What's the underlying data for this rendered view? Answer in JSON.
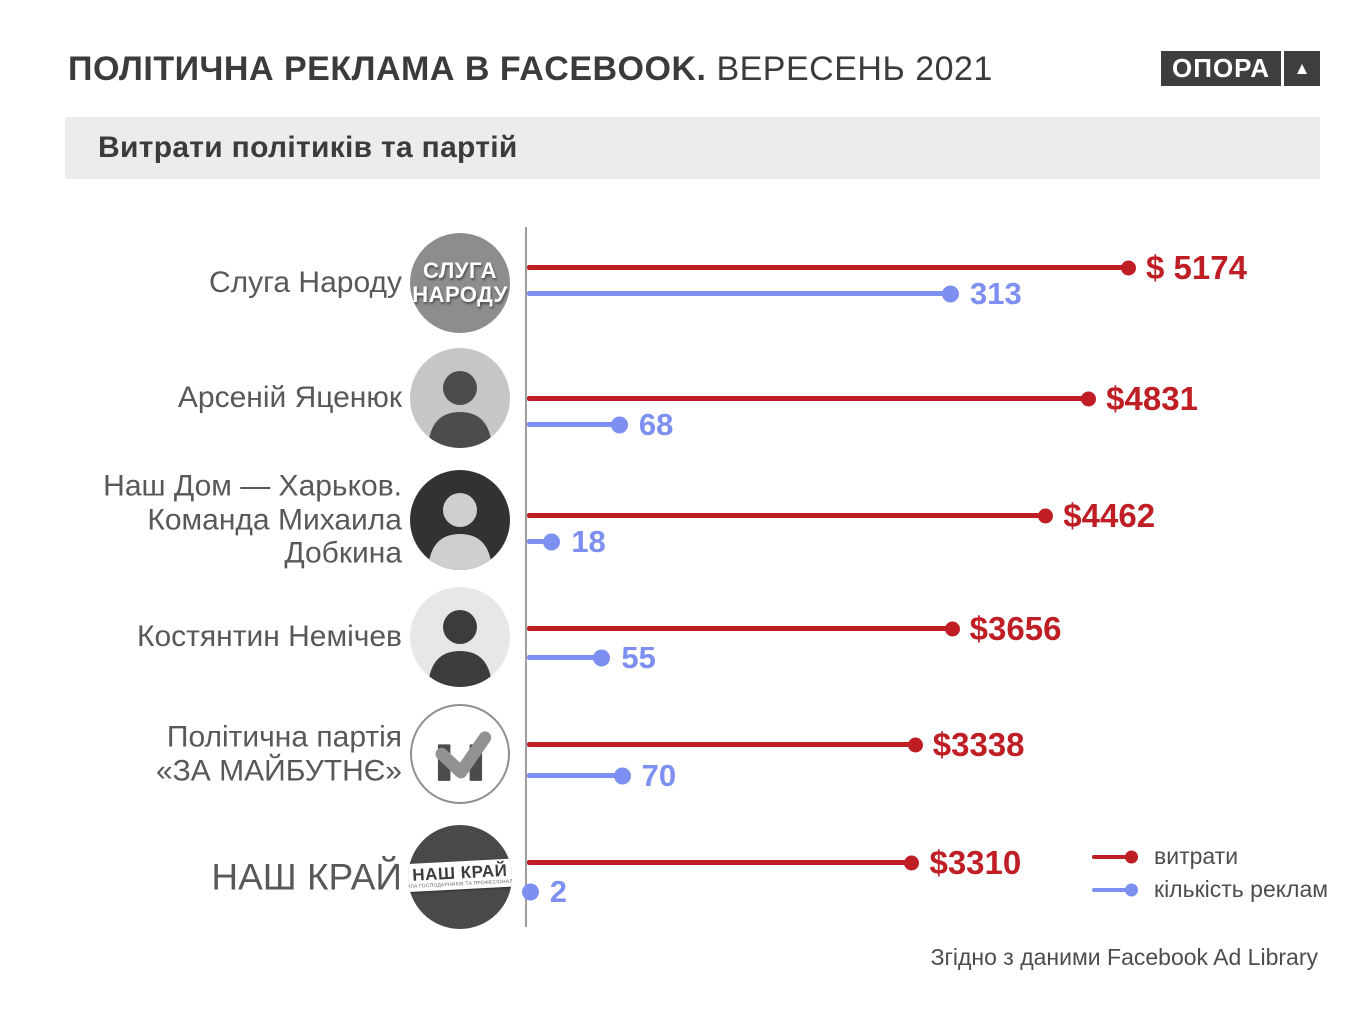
{
  "colors": {
    "spend_red": "#be1e24",
    "ads_blue": "#7d8ff0",
    "heading_dark": "#3b3b3d",
    "label_gray": "#58585a",
    "axis_gray": "#9d9d9d",
    "section_bar_bg": "#ececec",
    "logo_bg": "#3e3e40"
  },
  "header": {
    "title_bold": "ПОЛІТИЧНА РЕКЛАМА В FACEBOOK.",
    "title_period": "ВЕРЕСЕНЬ 2021",
    "logo_text": "ОПОРА",
    "logo_triangle": "▲"
  },
  "section": {
    "heading": "Витрати політиків та партій"
  },
  "chart_data": {
    "type": "lollipop-bar-horizontal",
    "title": "Витрати політиків та партій",
    "categories": [
      "Слуга Народу",
      "Арсеній Яценюк",
      "Наш Дом — Харьков. Команда Михаила Добкина",
      "Костянтин Немічев",
      "Політична партія «ЗА МАЙБУТНЄ»",
      "НАШ КРАЙ"
    ],
    "series": [
      {
        "name": "витрати",
        "color": "#be1e24",
        "values": [
          5174,
          4831,
          4462,
          3656,
          3338,
          3310
        ],
        "labels": [
          "$ 5174",
          "$4831",
          "$4462",
          "$3656",
          "$3338",
          "$3310"
        ]
      },
      {
        "name": "кількість реклам",
        "color": "#7d8ff0",
        "values": [
          313,
          68,
          18,
          55,
          70,
          2
        ],
        "labels": [
          "313",
          "68",
          "18",
          "55",
          "70",
          "2"
        ]
      }
    ],
    "legend_position": "bottom-right",
    "value_axis_hidden": true,
    "grid": false
  },
  "rows": [
    {
      "label_lines": [
        "Слуга Народу"
      ],
      "avatar": {
        "kind": "text-badge",
        "lines": [
          "СЛУГА",
          "НАРОДУ"
        ]
      }
    },
    {
      "label_lines": [
        "Арсеній Яценюк"
      ],
      "avatar": {
        "kind": "photo"
      }
    },
    {
      "label_lines": [
        "Наш Дом — Харьков.",
        "Команда Михаила",
        "Добкина"
      ],
      "avatar": {
        "kind": "photo"
      }
    },
    {
      "label_lines": [
        "Костянтин Немічев"
      ],
      "avatar": {
        "kind": "photo"
      }
    },
    {
      "label_lines": [
        "Політична партія",
        "«ЗА МАЙБУТНЄ»"
      ],
      "avatar": {
        "kind": "logo-m"
      }
    },
    {
      "label_lines": [
        "НАШ КРАЙ"
      ],
      "avatar": {
        "kind": "band-badge",
        "title": "НАШ КРАЙ",
        "subtitle": "СИЛА ГОСПОДАРНИКІВ ТА ПРОФЕСІОНАЛІВ"
      }
    }
  ],
  "footer": {
    "source": "Згідно з даними Facebook Ad Library"
  }
}
